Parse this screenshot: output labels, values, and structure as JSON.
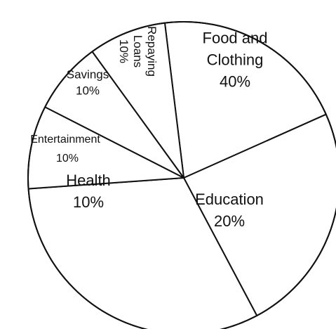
{
  "chart_data": {
    "type": "pie",
    "categories": [
      "Food and Clothing",
      "Education",
      "Health",
      "Entertainment",
      "Savings",
      "Repaying Loans"
    ],
    "values": [
      40,
      20,
      10,
      10,
      10,
      10
    ],
    "slices": [
      {
        "label_lines": [
          "Food and",
          "Clothing"
        ],
        "value_text": "40%"
      },
      {
        "label_lines": [
          "Education"
        ],
        "value_text": "20%"
      },
      {
        "label_lines": [
          "Health"
        ],
        "value_text": "10%"
      },
      {
        "label_lines": [
          "Entertainment"
        ],
        "value_text": "10%"
      },
      {
        "label_lines": [
          "Savings"
        ],
        "value_text": "10%"
      },
      {
        "label_lines": [
          "Repaying",
          "Loans"
        ],
        "value_text": "10%"
      }
    ],
    "colors": {
      "fill": "#ffffff",
      "stroke": "#111111"
    }
  }
}
